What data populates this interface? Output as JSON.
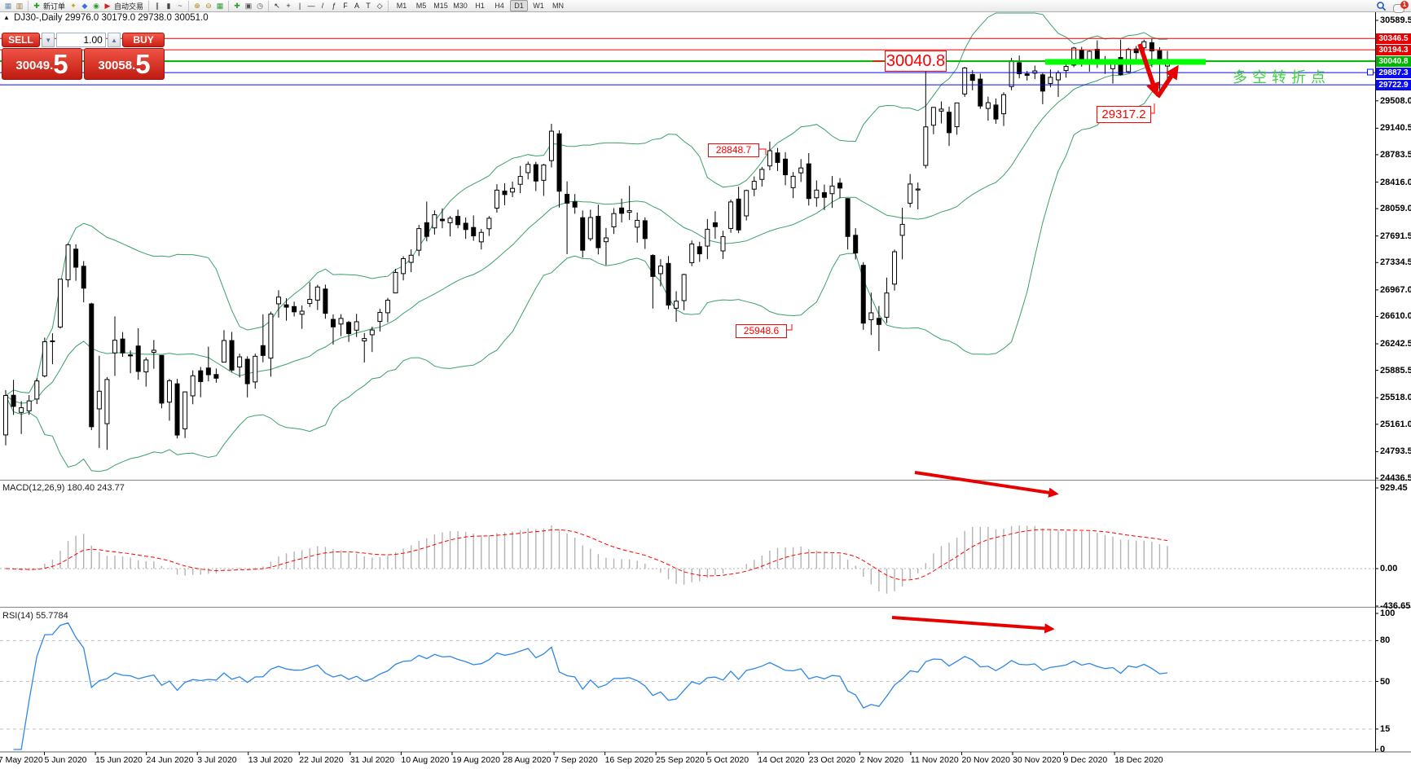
{
  "toolbar": {
    "groups": [
      {
        "items": [
          {
            "name": "new-chart-icon",
            "glyph": "▦",
            "color": "#6b8cae"
          },
          {
            "name": "profiles-icon",
            "glyph": "▥",
            "color": "#9a7b4f"
          }
        ]
      },
      {
        "items": [
          {
            "name": "new-order-icon",
            "glyph": "✚",
            "color": "#1f9d1f",
            "label": "新订单"
          },
          {
            "name": "strategy-tester-icon",
            "glyph": "✦",
            "color": "#c8a200"
          },
          {
            "name": "market-watch-icon",
            "glyph": "◆",
            "color": "#3b6fd4"
          },
          {
            "name": "signals-icon",
            "glyph": "◉",
            "color": "#2aa02a"
          },
          {
            "name": "autotrade-icon",
            "glyph": "▶",
            "color": "#cc2222",
            "label": "自动交易"
          }
        ]
      },
      {
        "items": [
          {
            "name": "bar-chart-icon",
            "glyph": "∥",
            "color": "#444"
          },
          {
            "name": "candle-chart-icon",
            "glyph": "▮",
            "color": "#444"
          },
          {
            "name": "line-chart-icon",
            "glyph": "~",
            "color": "#444"
          }
        ]
      },
      {
        "items": [
          {
            "name": "zoom-in-icon",
            "glyph": "⊕",
            "color": "#a8851f"
          },
          {
            "name": "zoom-out-icon",
            "glyph": "⊖",
            "color": "#a8851f"
          },
          {
            "name": "tile-windows-icon",
            "glyph": "▦",
            "color": "#2f9e2f"
          }
        ]
      },
      {
        "items": [
          {
            "name": "indicators-icon",
            "glyph": "✚",
            "color": "#2f9e2f"
          },
          {
            "name": "objects-icon",
            "glyph": "▣",
            "color": "#555"
          },
          {
            "name": "period-menu-icon",
            "glyph": "◷",
            "color": "#555"
          }
        ]
      },
      {
        "items": [
          {
            "name": "cursor-icon",
            "glyph": "↖",
            "color": "#222"
          },
          {
            "name": "crosshair-icon",
            "glyph": "+",
            "color": "#222"
          },
          {
            "name": "vline-icon",
            "glyph": "|",
            "color": "#222"
          },
          {
            "name": "hline-icon",
            "glyph": "—",
            "color": "#222"
          },
          {
            "name": "trendline-icon",
            "glyph": "/",
            "color": "#222"
          },
          {
            "name": "fibo-icon",
            "glyph": "ƒ",
            "color": "#222"
          },
          {
            "name": "channel-icon",
            "glyph": "F",
            "color": "#222"
          },
          {
            "name": "text-icon",
            "glyph": "A",
            "color": "#222"
          },
          {
            "name": "label-icon",
            "glyph": "T",
            "color": "#222"
          },
          {
            "name": "shapes-icon",
            "glyph": "◇",
            "color": "#222"
          }
        ]
      }
    ],
    "timeframes": [
      "M1",
      "M5",
      "M15",
      "M30",
      "H1",
      "H4",
      "D1",
      "W1",
      "MN"
    ],
    "active_timeframe": "D1",
    "notification_badge": "1"
  },
  "chart_header": {
    "marker": "▲",
    "title": "DJ30-,Daily  29976.0 30179.0 29738.0 30051.0"
  },
  "trade_panel": {
    "sell_label": "SELL",
    "buy_label": "BUY",
    "volume": "1.00",
    "sell_price": {
      "base": "30049",
      "point": ".",
      "big": "5"
    },
    "buy_price": {
      "base": "30058",
      "point": ".",
      "big": "5"
    }
  },
  "price_axis": {
    "ticks": [
      "30589.5",
      "29508.0",
      "29140.5",
      "28783.5",
      "28416.0",
      "28059.0",
      "27691.5",
      "27334.5",
      "26967.0",
      "26610.0",
      "26242.5",
      "25885.5",
      "25518.0",
      "25161.0",
      "24793.5",
      "24436.5"
    ]
  },
  "time_axis": {
    "dates": [
      "27 May 2020",
      "5 Jun 2020",
      "15 Jun 2020",
      "24 Jun 2020",
      "3 Jul 2020",
      "13 Jul 2020",
      "22 Jul 2020",
      "31 Jul 2020",
      "10 Aug 2020",
      "19 Aug 2020",
      "28 Aug 2020",
      "7 Sep 2020",
      "16 Sep 2020",
      "25 Sep 2020",
      "5 Oct 2020",
      "14 Oct 2020",
      "23 Oct 2020",
      "2 Nov 2020",
      "11 Nov 2020",
      "20 Nov 2020",
      "30 Nov 2020",
      "9 Dec 2020",
      "18 Dec 2020"
    ]
  },
  "macd_panel": {
    "label": "MACD(12,26,9) 180.40 243.77",
    "ticks": [
      "929.45",
      "0.00",
      "-436.65"
    ]
  },
  "rsi_panel": {
    "label": "RSI(14) 55.7784",
    "ticks": [
      "100",
      "80",
      "50",
      "15",
      "0"
    ]
  },
  "annotations": {
    "resistance_level": "30040.8",
    "october_high": "28848.7",
    "october_low": "25948.6",
    "pullback_target": "29317.2",
    "note_cn": "多空转折点"
  },
  "chart_data": {
    "type": "candlestick",
    "symbol": "DJ30-",
    "timeframe": "Daily",
    "last_bar": {
      "open": 29976.0,
      "high": 30179.0,
      "low": 29738.0,
      "close": 30051.0
    },
    "bid": "30049.5",
    "ask": "30058.5",
    "price_range": {
      "top": 30589.5,
      "bottom": 24436.5
    },
    "levels": [
      {
        "price": 30346.5,
        "color": "#e60000",
        "width": 1
      },
      {
        "price": 30194.3,
        "color": "#e60000",
        "width": 1
      },
      {
        "price": 30040.8,
        "color": "#00b300",
        "width": 2
      },
      {
        "price": 29887.3,
        "color": "#0b0bf0",
        "width": 1,
        "marker": true
      },
      {
        "price": 29722.9,
        "color": "#0b0bf0",
        "width": 1
      }
    ],
    "bollinger": {
      "period": 20,
      "deviation": 2,
      "color": "#3aa06a"
    },
    "macd": {
      "fast": 12,
      "slow": 26,
      "signal": 9,
      "value": 180.4,
      "signal_value": 243.77,
      "axis_max": 929.45,
      "axis_min": -436.65,
      "hist_color": "#b3b3b3",
      "line_color": "#ff0000"
    },
    "rsi": {
      "period": 14,
      "value": 55.7784,
      "levels": [
        80,
        50,
        15
      ],
      "axis": [
        0,
        100
      ],
      "color": "#2e86e8"
    },
    "candles": [
      [
        25018,
        25620,
        24877,
        25548
      ],
      [
        25551,
        25758,
        25286,
        25401
      ],
      [
        25320,
        25471,
        25031,
        25383
      ],
      [
        25342,
        25553,
        25288,
        25475
      ],
      [
        25500,
        25780,
        25432,
        25743
      ],
      [
        25810,
        26326,
        25791,
        26270
      ],
      [
        26273,
        26384,
        25968,
        26282
      ],
      [
        26468,
        27111,
        26447,
        27111
      ],
      [
        27103,
        27595,
        27003,
        27572
      ],
      [
        27515,
        27580,
        27090,
        27272
      ],
      [
        27285,
        27355,
        26800,
        26990
      ],
      [
        26779,
        26794,
        25082,
        25128
      ],
      [
        25368,
        26082,
        24843,
        25605
      ],
      [
        25169,
        25795,
        24817,
        25763
      ],
      [
        26120,
        26611,
        25811,
        26290
      ],
      [
        26307,
        26400,
        26068,
        26120
      ],
      [
        26094,
        26154,
        25848,
        26080
      ],
      [
        26213,
        26451,
        25759,
        25871
      ],
      [
        25865,
        26059,
        25667,
        26025
      ],
      [
        26128,
        26294,
        25907,
        26156
      ],
      [
        26086,
        26086,
        25376,
        25445
      ],
      [
        25458,
        25769,
        25209,
        25746
      ],
      [
        25705,
        25771,
        24971,
        25016
      ],
      [
        25100,
        25602,
        24976,
        25596
      ],
      [
        25543,
        25886,
        25430,
        25813
      ],
      [
        25880,
        25931,
        25524,
        25735
      ],
      [
        25917,
        26204,
        25738,
        25827
      ],
      [
        25830,
        25910,
        25720,
        25780
      ],
      [
        25996,
        26426,
        25996,
        26287
      ],
      [
        26286,
        26402,
        25865,
        25890
      ],
      [
        25931,
        26110,
        25790,
        26067
      ],
      [
        26035,
        26075,
        25523,
        25706
      ],
      [
        25730,
        26110,
        25640,
        26075
      ],
      [
        26218,
        26639,
        25994,
        26086
      ],
      [
        26050,
        26675,
        25800,
        26643
      ],
      [
        26780,
        26963,
        26594,
        26870
      ],
      [
        26767,
        26855,
        26553,
        26735
      ],
      [
        26743,
        26808,
        26610,
        26672
      ],
      [
        26639,
        26758,
        26444,
        26681
      ],
      [
        26784,
        27070,
        26737,
        26840
      ],
      [
        26830,
        27035,
        26697,
        27006
      ],
      [
        26979,
        27038,
        26579,
        26652
      ],
      [
        26571,
        26638,
        26232,
        26470
      ],
      [
        26508,
        26640,
        26345,
        26584
      ],
      [
        26530,
        26550,
        26268,
        26379
      ],
      [
        26426,
        26645,
        26333,
        26539
      ],
      [
        26281,
        26388,
        25992,
        26313
      ],
      [
        26364,
        26473,
        26132,
        26428
      ],
      [
        26543,
        26712,
        26407,
        26664
      ],
      [
        26660,
        26860,
        26531,
        26828
      ],
      [
        26926,
        27249,
        26926,
        27202
      ],
      [
        27186,
        27420,
        27095,
        27387
      ],
      [
        27337,
        27512,
        27205,
        27433
      ],
      [
        27500,
        27840,
        27423,
        27791
      ],
      [
        27870,
        28155,
        27620,
        27686
      ],
      [
        27800,
        28035,
        27710,
        27977
      ],
      [
        27917,
        28063,
        27795,
        27897
      ],
      [
        27870,
        27959,
        27686,
        27931
      ],
      [
        27955,
        28045,
        27795,
        27844
      ],
      [
        27863,
        27940,
        27653,
        27778
      ],
      [
        27806,
        27968,
        27627,
        27693
      ],
      [
        27613,
        27786,
        27510,
        27740
      ],
      [
        27789,
        27959,
        27692,
        27930
      ],
      [
        28066,
        28388,
        28005,
        28308
      ],
      [
        28295,
        28400,
        28106,
        28248
      ],
      [
        28282,
        28422,
        28214,
        28332
      ],
      [
        28386,
        28634,
        28268,
        28492
      ],
      [
        28543,
        28691,
        28452,
        28654
      ],
      [
        28651,
        28688,
        28295,
        28430
      ],
      [
        28440,
        28660,
        28230,
        28645
      ],
      [
        28705,
        29200,
        28612,
        29100
      ],
      [
        29065,
        29112,
        28074,
        28293
      ],
      [
        28251,
        28425,
        27448,
        28133
      ],
      [
        28150,
        28255,
        27990,
        28080
      ],
      [
        27937,
        28035,
        27401,
        27500
      ],
      [
        27655,
        28046,
        27624,
        27940
      ],
      [
        27956,
        28113,
        27444,
        27534
      ],
      [
        27615,
        27800,
        27300,
        27666
      ],
      [
        27814,
        28066,
        27718,
        27993
      ],
      [
        28068,
        28195,
        27873,
        27996
      ],
      [
        28010,
        28365,
        27907,
        28032
      ],
      [
        27810,
        28007,
        27602,
        27902
      ],
      [
        27897,
        27943,
        27518,
        27657
      ],
      [
        27430,
        27446,
        26716,
        27148
      ],
      [
        27185,
        27380,
        27015,
        27288
      ],
      [
        27323,
        27422,
        26707,
        26763
      ],
      [
        26721,
        26949,
        26538,
        26815
      ],
      [
        26823,
        27184,
        26693,
        27174
      ],
      [
        27333,
        27630,
        27286,
        27584
      ],
      [
        27548,
        27614,
        27343,
        27452
      ],
      [
        27556,
        27920,
        27381,
        27782
      ],
      [
        27869,
        28025,
        27654,
        27817
      ],
      [
        27491,
        27762,
        27383,
        27683
      ],
      [
        27793,
        28181,
        27735,
        28149
      ],
      [
        28188,
        28354,
        27730,
        27773
      ],
      [
        27962,
        28314,
        27901,
        28303
      ],
      [
        28321,
        28492,
        28227,
        28426
      ],
      [
        28452,
        28620,
        28356,
        28587
      ],
      [
        28633,
        28960,
        28574,
        28838
      ],
      [
        28808,
        28875,
        28565,
        28680
      ],
      [
        28725,
        28818,
        28374,
        28514
      ],
      [
        28341,
        28552,
        28200,
        28494
      ],
      [
        28540,
        28725,
        28417,
        28606
      ],
      [
        28661,
        28805,
        28101,
        28195
      ],
      [
        28205,
        28438,
        28085,
        28308
      ],
      [
        28274,
        28383,
        28040,
        28211
      ],
      [
        28260,
        28497,
        28069,
        28363
      ],
      [
        28402,
        28470,
        28200,
        28336
      ],
      [
        28194,
        28200,
        27510,
        27685
      ],
      [
        27701,
        27796,
        27376,
        27463
      ],
      [
        27297,
        27339,
        26431,
        26520
      ],
      [
        26567,
        26931,
        26361,
        26659
      ],
      [
        26585,
        26751,
        26145,
        26502
      ],
      [
        26600,
        27132,
        26521,
        26925
      ],
      [
        27045,
        27509,
        26958,
        27480
      ],
      [
        27700,
        28071,
        27378,
        27848
      ],
      [
        28131,
        28525,
        28076,
        28390
      ],
      [
        28310,
        28410,
        28049,
        28323
      ],
      [
        28640,
        29900,
        28600,
        29158
      ],
      [
        29180,
        29426,
        29060,
        29420
      ],
      [
        29370,
        29500,
        29204,
        29397
      ],
      [
        29355,
        29430,
        28902,
        29080
      ],
      [
        29160,
        29480,
        29052,
        29480
      ],
      [
        29600,
        29964,
        29561,
        29950
      ],
      [
        29861,
        29920,
        29650,
        29783
      ],
      [
        29800,
        29873,
        29400,
        29438
      ],
      [
        29406,
        29564,
        29240,
        29483
      ],
      [
        29452,
        29540,
        29200,
        29263
      ],
      [
        29334,
        29622,
        29170,
        29591
      ],
      [
        29700,
        30085,
        29650,
        30046
      ],
      [
        30020,
        30116,
        29810,
        29872
      ],
      [
        29870,
        29910,
        29780,
        29850
      ],
      [
        29880,
        29982,
        29800,
        29910
      ],
      [
        29858,
        29882,
        29463,
        29639
      ],
      [
        29740,
        29930,
        29690,
        29824
      ],
      [
        29790,
        29916,
        29560,
        29884
      ],
      [
        29915,
        30035,
        29820,
        29970
      ],
      [
        29988,
        30235,
        29960,
        30218
      ],
      [
        30187,
        30233,
        29967,
        30070
      ],
      [
        30060,
        30185,
        29900,
        30174
      ],
      [
        30200,
        30320,
        29950,
        30069
      ],
      [
        30015,
        30110,
        29870,
        29999
      ],
      [
        29940,
        30065,
        29740,
        30046
      ],
      [
        30090,
        30330,
        29850,
        29862
      ],
      [
        29900,
        30220,
        29880,
        30199
      ],
      [
        30205,
        30245,
        30055,
        30155
      ],
      [
        30220,
        30330,
        30120,
        30303
      ],
      [
        30290,
        30350,
        29960,
        30179
      ],
      [
        30180,
        30230,
        29560,
        30015
      ],
      [
        29976,
        30179,
        29738,
        30051
      ]
    ]
  }
}
